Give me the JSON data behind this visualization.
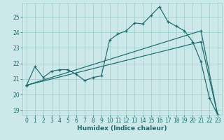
{
  "xlabel": "Humidex (Indice chaleur)",
  "bg_color": "#cce8e8",
  "grid_color": "#99cccc",
  "line_color": "#1a6b6b",
  "xlim": [
    -0.5,
    23.5
  ],
  "ylim": [
    18.7,
    25.9
  ],
  "xticks": [
    0,
    1,
    2,
    3,
    4,
    5,
    6,
    7,
    8,
    9,
    10,
    11,
    12,
    13,
    14,
    15,
    16,
    17,
    18,
    19,
    20,
    21,
    22,
    23
  ],
  "yticks": [
    19,
    20,
    21,
    22,
    23,
    24,
    25
  ],
  "line1_x": [
    0,
    1,
    2,
    3,
    4,
    5,
    6,
    7,
    8,
    9,
    10,
    11,
    12,
    13,
    14,
    15,
    16,
    17,
    18,
    19,
    20,
    21,
    22,
    23
  ],
  "line1_y": [
    20.6,
    21.8,
    21.1,
    21.5,
    21.6,
    21.6,
    21.3,
    20.9,
    21.1,
    21.2,
    23.5,
    23.9,
    24.1,
    24.6,
    24.55,
    25.1,
    25.65,
    24.7,
    24.4,
    24.1,
    23.4,
    22.1,
    19.8,
    18.7
  ],
  "line2_x": [
    0,
    21,
    23
  ],
  "line2_y": [
    20.6,
    24.1,
    18.7
  ],
  "line3_x": [
    0,
    21,
    23
  ],
  "line3_y": [
    20.6,
    23.4,
    18.7
  ]
}
